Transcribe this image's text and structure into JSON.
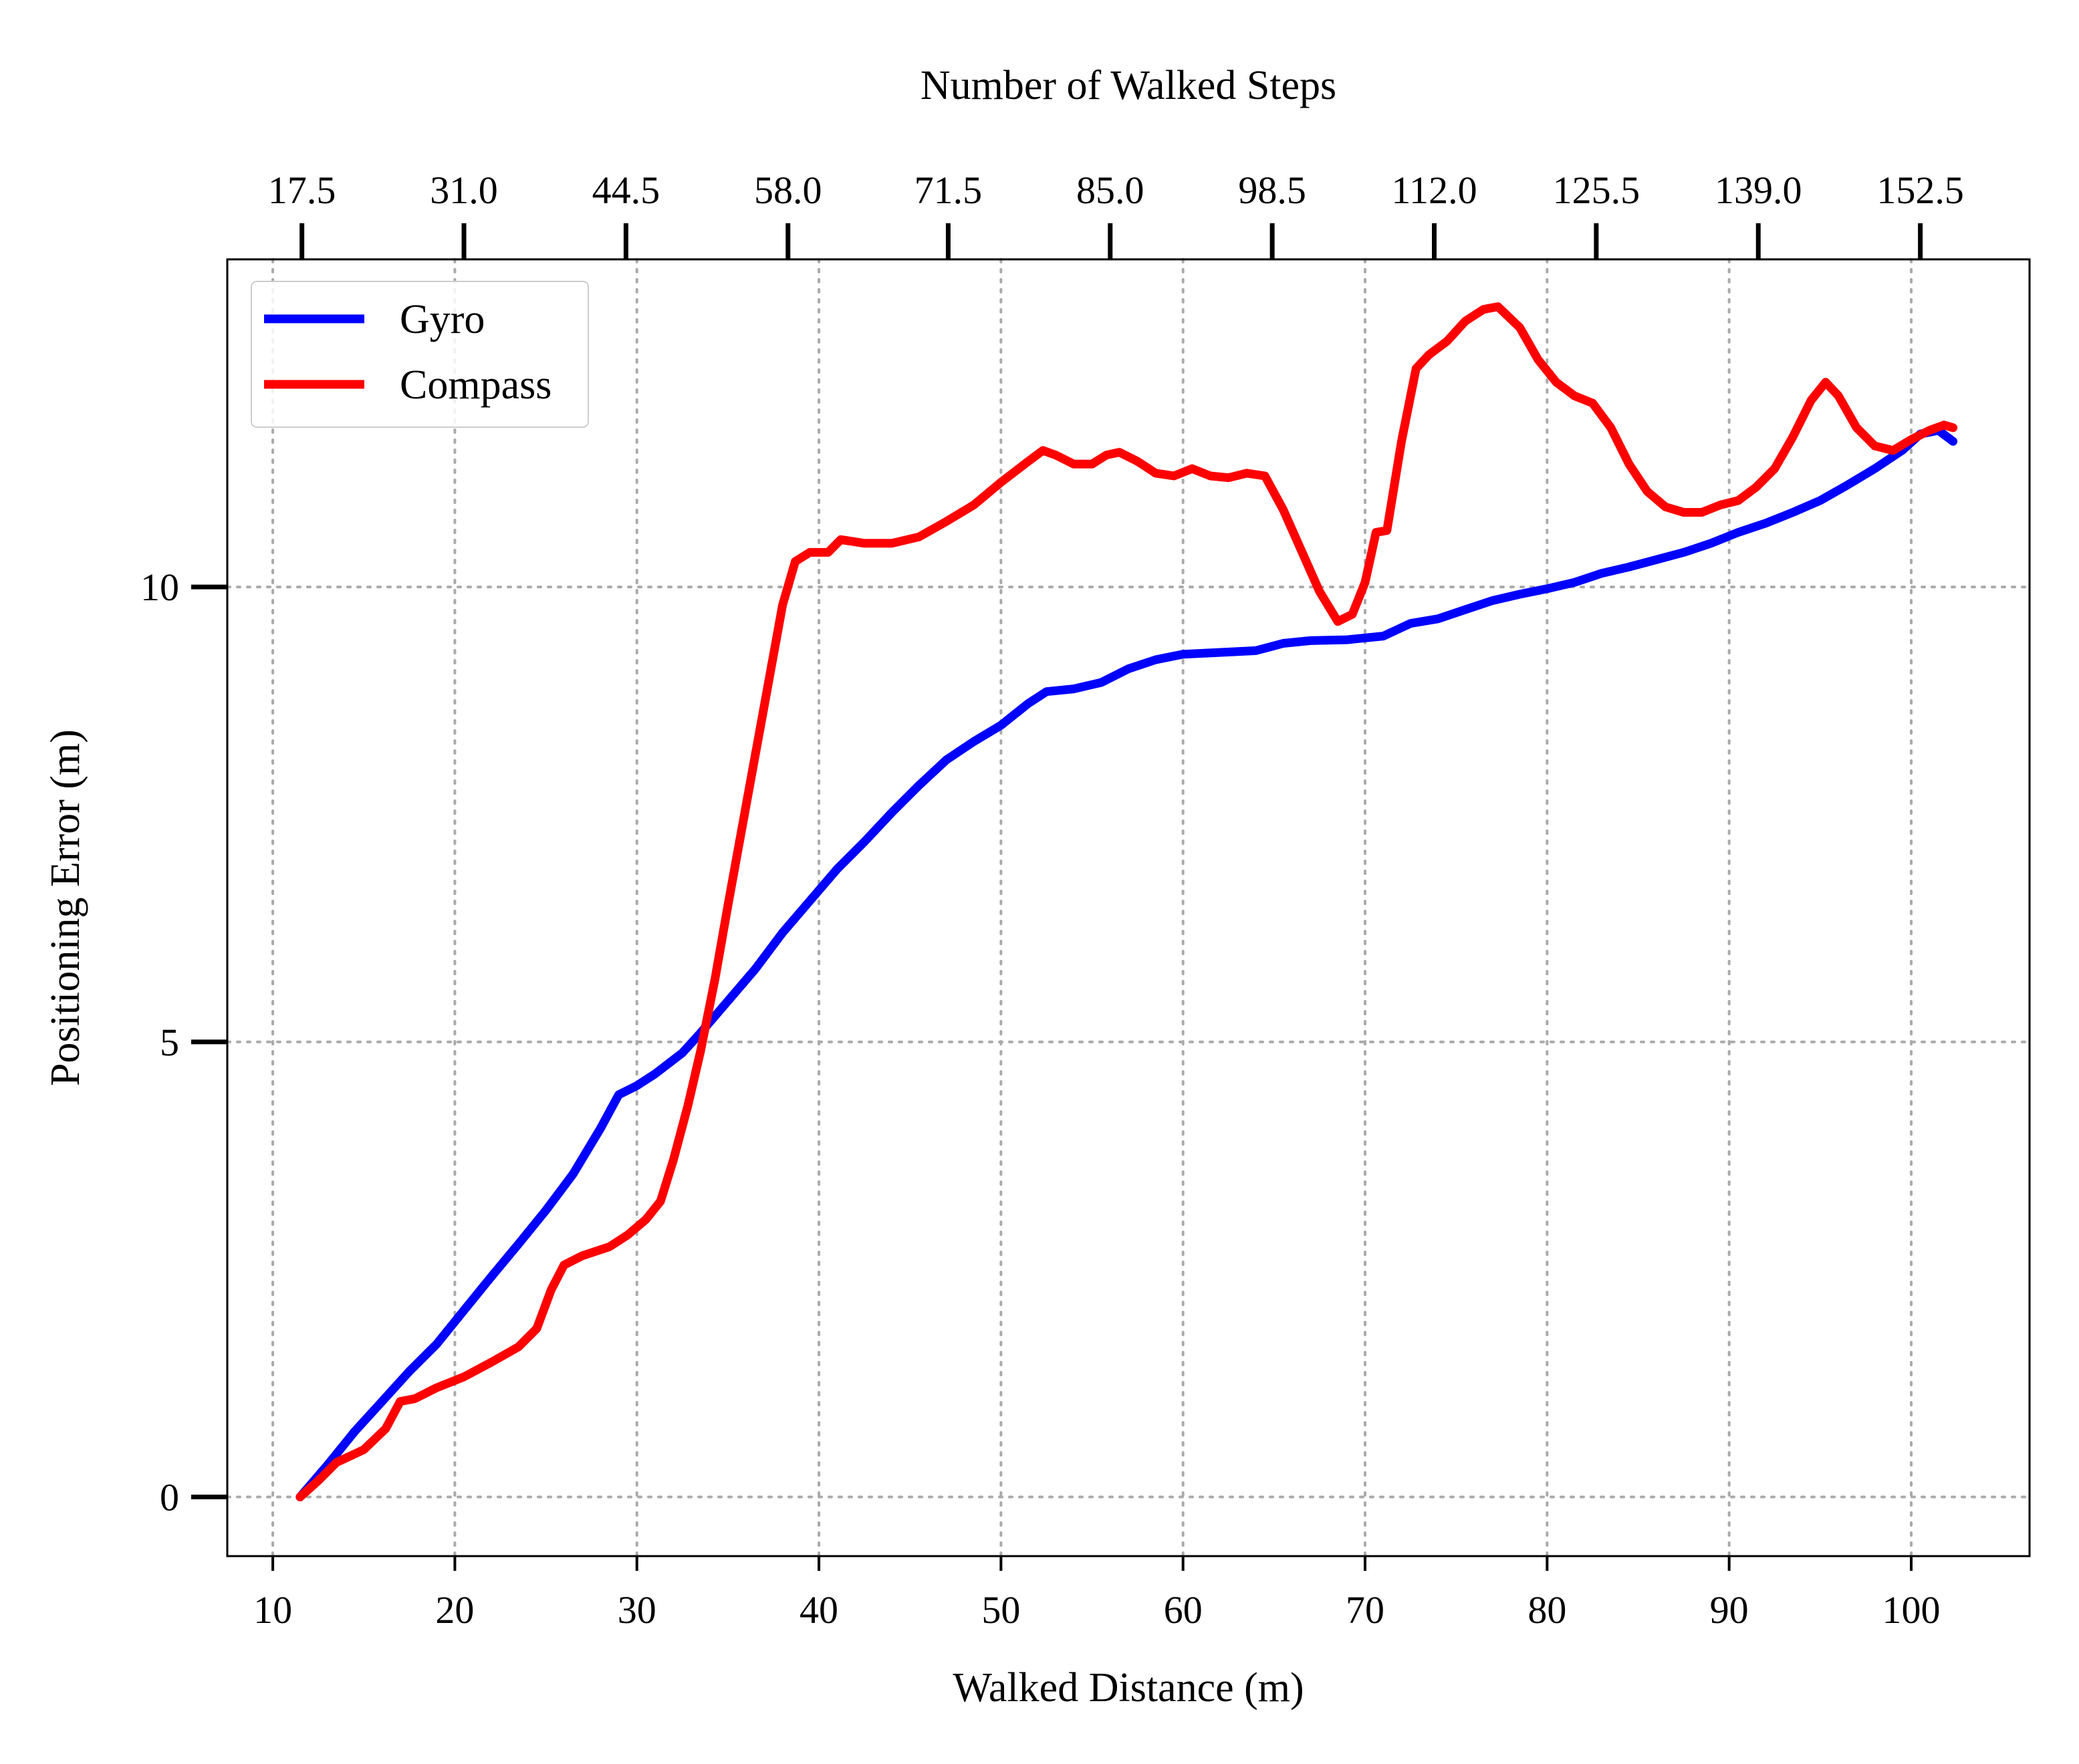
{
  "chart_data": {
    "type": "line",
    "xlabel": "Walked Distance (m)",
    "ylabel": "Positioning Error (m)",
    "top_xlabel": "Number of Walked Steps",
    "xlim": [
      7.5,
      106.5
    ],
    "ylim": [
      -0.65,
      13.6
    ],
    "xticks": [
      10,
      20,
      30,
      40,
      50,
      60,
      70,
      80,
      90,
      100
    ],
    "xtick_labels": [
      "10",
      "20",
      "30",
      "40",
      "50",
      "60",
      "70",
      "80",
      "90",
      "100"
    ],
    "yticks": [
      0,
      5,
      10
    ],
    "ytick_labels": [
      "0",
      "5",
      "10"
    ],
    "top_ticks": [
      {
        "x": 11.6,
        "label": "17.5"
      },
      {
        "x": 20.5,
        "label": "31.0"
      },
      {
        "x": 29.4,
        "label": "44.5"
      },
      {
        "x": 38.3,
        "label": "58.0"
      },
      {
        "x": 47.1,
        "label": "71.5"
      },
      {
        "x": 56.0,
        "label": "85.0"
      },
      {
        "x": 64.9,
        "label": "98.5"
      },
      {
        "x": 73.8,
        "label": "112.0"
      },
      {
        "x": 82.7,
        "label": "125.5"
      },
      {
        "x": 91.6,
        "label": "139.0"
      },
      {
        "x": 100.5,
        "label": "152.5"
      }
    ],
    "grid": true,
    "legend_position": "top-left",
    "series": [
      {
        "name": "Gyro",
        "color": "#0000ff",
        "points": [
          [
            11.5,
            0.0
          ],
          [
            13.0,
            0.35
          ],
          [
            14.5,
            0.72
          ],
          [
            16.0,
            1.05
          ],
          [
            17.5,
            1.38
          ],
          [
            19.0,
            1.68
          ],
          [
            20.5,
            2.05
          ],
          [
            22.0,
            2.42
          ],
          [
            23.5,
            2.78
          ],
          [
            25.0,
            3.15
          ],
          [
            26.5,
            3.55
          ],
          [
            28.0,
            4.05
          ],
          [
            29.0,
            4.42
          ],
          [
            30.0,
            4.52
          ],
          [
            31.0,
            4.65
          ],
          [
            32.5,
            4.88
          ],
          [
            33.5,
            5.1
          ],
          [
            35.0,
            5.45
          ],
          [
            36.5,
            5.8
          ],
          [
            38.0,
            6.2
          ],
          [
            39.5,
            6.55
          ],
          [
            41.0,
            6.9
          ],
          [
            42.5,
            7.2
          ],
          [
            44.0,
            7.52
          ],
          [
            45.5,
            7.82
          ],
          [
            47.0,
            8.1
          ],
          [
            48.5,
            8.3
          ],
          [
            50.0,
            8.48
          ],
          [
            51.5,
            8.72
          ],
          [
            52.5,
            8.85
          ],
          [
            54.0,
            8.88
          ],
          [
            55.5,
            8.95
          ],
          [
            57.0,
            9.1
          ],
          [
            58.5,
            9.2
          ],
          [
            60.0,
            9.26
          ],
          [
            62.0,
            9.28
          ],
          [
            64.0,
            9.3
          ],
          [
            65.5,
            9.38
          ],
          [
            67.0,
            9.41
          ],
          [
            69.0,
            9.42
          ],
          [
            71.0,
            9.46
          ],
          [
            72.5,
            9.6
          ],
          [
            74.0,
            9.65
          ],
          [
            75.5,
            9.75
          ],
          [
            77.0,
            9.85
          ],
          [
            78.5,
            9.92
          ],
          [
            80.0,
            9.98
          ],
          [
            81.5,
            10.05
          ],
          [
            83.0,
            10.15
          ],
          [
            84.5,
            10.22
          ],
          [
            86.0,
            10.3
          ],
          [
            87.5,
            10.38
          ],
          [
            89.0,
            10.48
          ],
          [
            90.5,
            10.6
          ],
          [
            92.0,
            10.7
          ],
          [
            93.5,
            10.82
          ],
          [
            95.0,
            10.95
          ],
          [
            96.5,
            11.12
          ],
          [
            98.0,
            11.3
          ],
          [
            99.5,
            11.5
          ],
          [
            100.5,
            11.68
          ],
          [
            101.5,
            11.72
          ],
          [
            102.3,
            11.6
          ]
        ]
      },
      {
        "name": "Compass",
        "color": "#ff0000",
        "points": [
          [
            11.5,
            0.0
          ],
          [
            12.5,
            0.18
          ],
          [
            13.5,
            0.38
          ],
          [
            15.0,
            0.52
          ],
          [
            16.2,
            0.75
          ],
          [
            17.0,
            1.05
          ],
          [
            17.8,
            1.08
          ],
          [
            19.0,
            1.2
          ],
          [
            20.5,
            1.32
          ],
          [
            22.0,
            1.48
          ],
          [
            23.5,
            1.65
          ],
          [
            24.5,
            1.85
          ],
          [
            25.3,
            2.28
          ],
          [
            26.0,
            2.55
          ],
          [
            27.0,
            2.65
          ],
          [
            28.5,
            2.75
          ],
          [
            29.5,
            2.88
          ],
          [
            30.5,
            3.05
          ],
          [
            31.3,
            3.25
          ],
          [
            32.0,
            3.7
          ],
          [
            32.8,
            4.3
          ],
          [
            33.5,
            4.9
          ],
          [
            34.3,
            5.7
          ],
          [
            35.0,
            6.5
          ],
          [
            36.0,
            7.6
          ],
          [
            37.0,
            8.7
          ],
          [
            38.0,
            9.8
          ],
          [
            38.7,
            10.28
          ],
          [
            39.5,
            10.38
          ],
          [
            40.5,
            10.38
          ],
          [
            41.2,
            10.52
          ],
          [
            42.5,
            10.48
          ],
          [
            44.0,
            10.48
          ],
          [
            45.5,
            10.55
          ],
          [
            47.0,
            10.72
          ],
          [
            48.5,
            10.9
          ],
          [
            50.0,
            11.15
          ],
          [
            51.5,
            11.38
          ],
          [
            52.3,
            11.5
          ],
          [
            53.0,
            11.45
          ],
          [
            54.0,
            11.35
          ],
          [
            55.0,
            11.35
          ],
          [
            55.8,
            11.45
          ],
          [
            56.5,
            11.48
          ],
          [
            57.5,
            11.38
          ],
          [
            58.5,
            11.25
          ],
          [
            59.5,
            11.22
          ],
          [
            60.5,
            11.3
          ],
          [
            61.5,
            11.22
          ],
          [
            62.5,
            11.2
          ],
          [
            63.5,
            11.25
          ],
          [
            64.5,
            11.22
          ],
          [
            65.5,
            10.85
          ],
          [
            66.5,
            10.4
          ],
          [
            67.5,
            9.95
          ],
          [
            68.5,
            9.62
          ],
          [
            69.3,
            9.7
          ],
          [
            70.0,
            10.05
          ],
          [
            70.6,
            10.6
          ],
          [
            71.2,
            10.62
          ],
          [
            72.0,
            11.6
          ],
          [
            72.8,
            12.4
          ],
          [
            73.5,
            12.55
          ],
          [
            74.5,
            12.7
          ],
          [
            75.5,
            12.92
          ],
          [
            76.5,
            13.05
          ],
          [
            77.3,
            13.08
          ],
          [
            78.5,
            12.85
          ],
          [
            79.5,
            12.5
          ],
          [
            80.5,
            12.25
          ],
          [
            81.5,
            12.1
          ],
          [
            82.5,
            12.02
          ],
          [
            83.5,
            11.75
          ],
          [
            84.5,
            11.35
          ],
          [
            85.5,
            11.05
          ],
          [
            86.5,
            10.88
          ],
          [
            87.5,
            10.82
          ],
          [
            88.5,
            10.82
          ],
          [
            89.5,
            10.9
          ],
          [
            90.5,
            10.95
          ],
          [
            91.5,
            11.1
          ],
          [
            92.5,
            11.3
          ],
          [
            93.5,
            11.65
          ],
          [
            94.5,
            12.05
          ],
          [
            95.3,
            12.25
          ],
          [
            96.0,
            12.1
          ],
          [
            97.0,
            11.75
          ],
          [
            98.0,
            11.55
          ],
          [
            99.0,
            11.5
          ],
          [
            100.0,
            11.62
          ],
          [
            101.0,
            11.72
          ],
          [
            101.8,
            11.78
          ],
          [
            102.3,
            11.75
          ]
        ]
      }
    ]
  }
}
